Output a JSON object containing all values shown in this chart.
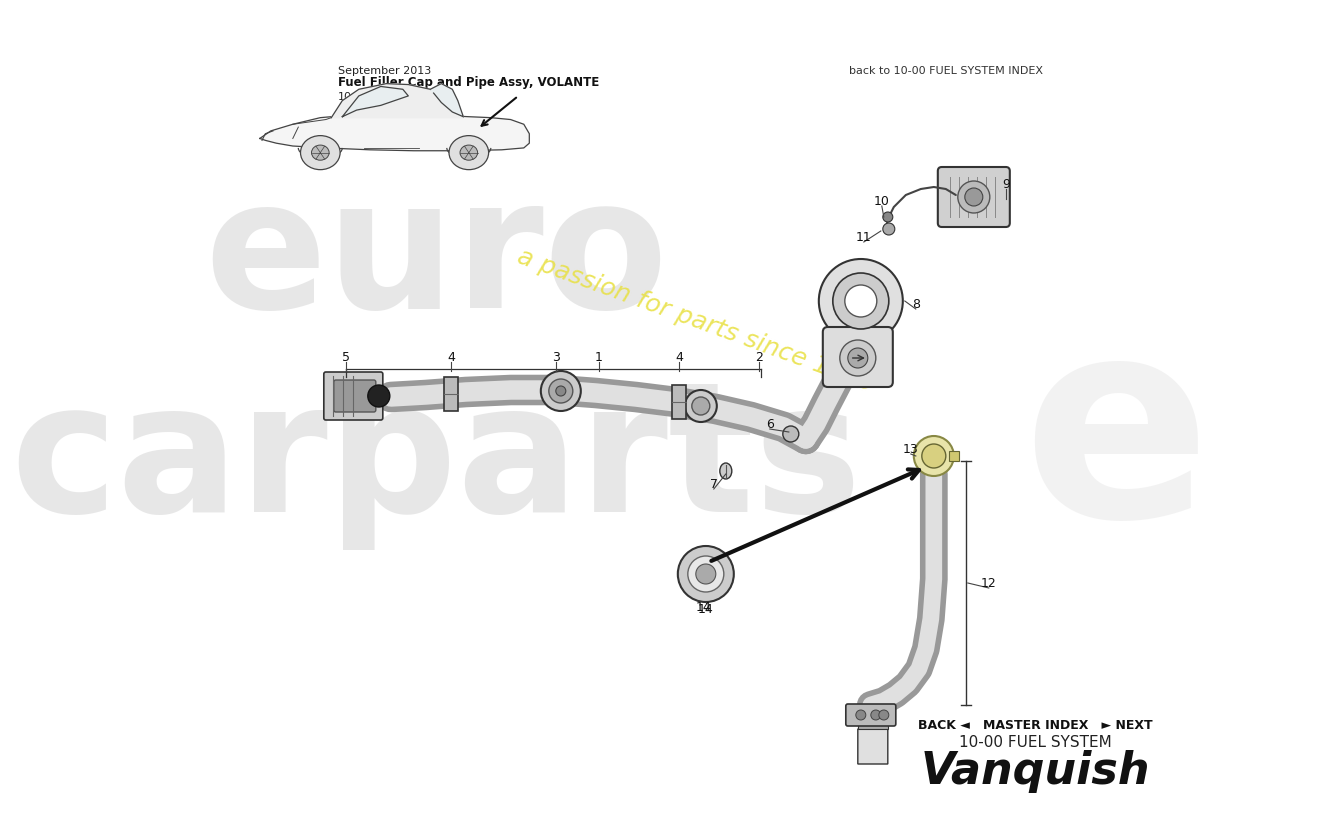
{
  "bg_color": "#ffffff",
  "title_brand": "Vanquish",
  "title_system": "10-00 FUEL SYSTEM",
  "nav_text": "BACK ◄   MASTER INDEX   ► NEXT",
  "part_number": "10-0103-02",
  "part_name": "Fuel Filler Cap and Pipe Assy, VOLANTE",
  "date": "September 2013",
  "footer_link": "back to 10-00 FUEL SYSTEM INDEX",
  "wm_text": "eurocarparts",
  "wm_subtext": "a passion for parts since 1985",
  "line_color": "#333333",
  "tube_gray": "#aaaaaa",
  "tube_light": "#dddddd",
  "tube_lw_outer": 16,
  "tube_lw_inner": 10,
  "label_fontsize": 9
}
